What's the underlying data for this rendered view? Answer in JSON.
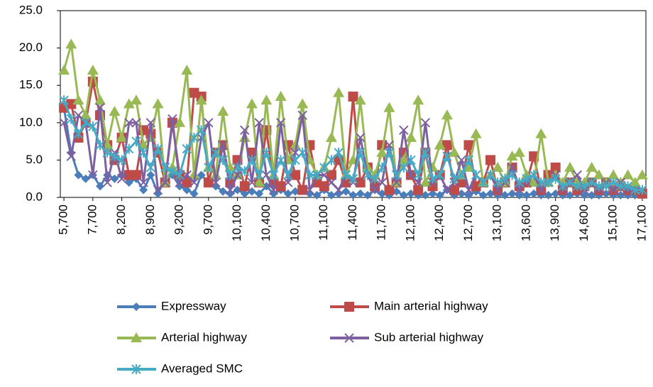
{
  "chart_data": {
    "type": "line",
    "categories": [
      "5,700",
      null,
      null,
      null,
      "7,700",
      null,
      null,
      null,
      "8,200",
      null,
      null,
      null,
      "8,900",
      null,
      null,
      null,
      "9,200",
      null,
      null,
      null,
      "9,700",
      null,
      null,
      null,
      "10,100",
      null,
      null,
      null,
      "10,400",
      null,
      null,
      null,
      "10,700",
      null,
      null,
      null,
      "11,100",
      null,
      null,
      null,
      "11,400",
      null,
      null,
      null,
      "11,700",
      null,
      null,
      null,
      "12,100",
      null,
      null,
      null,
      "12,400",
      null,
      null,
      null,
      "12,700",
      null,
      null,
      null,
      "13,100",
      null,
      null,
      null,
      "13,600",
      null,
      null,
      null,
      "13,900",
      null,
      null,
      null,
      "14,600",
      null,
      null,
      null,
      "15,100",
      null,
      null,
      null,
      "17,100"
    ],
    "ylim": [
      0,
      25
    ],
    "yticks": [
      {
        "value": 0,
        "label": "0.0"
      },
      {
        "value": 5,
        "label": "5.0"
      },
      {
        "value": 10,
        "label": "10.0"
      },
      {
        "value": 15,
        "label": "15.0"
      },
      {
        "value": 20,
        "label": "20.0"
      },
      {
        "value": 25,
        "label": "25.0"
      }
    ],
    "series": [
      {
        "name": "Expressway",
        "color": "#4a7ebb",
        "marker": "diamond",
        "values": [
          12,
          6,
          3,
          2.5,
          3,
          1.5,
          3,
          2.5,
          3,
          2,
          2.5,
          1,
          3,
          0.5,
          2.5,
          3,
          1.5,
          1,
          0.5,
          3,
          2,
          1.5,
          0.8,
          0.5,
          1,
          0.5,
          0.8,
          0.5,
          1.5,
          0.5,
          1,
          0.5,
          0.8,
          1,
          0.5,
          0.3,
          1,
          0.3,
          0.5,
          0.8,
          0.3,
          0.5,
          0.3,
          1,
          0.5,
          0.3,
          0.8,
          0.3,
          0.5,
          0.3,
          0.3,
          0.5,
          0.3,
          1,
          0.3,
          0.5,
          0.3,
          0.8,
          0.3,
          0.5,
          0.3,
          0.3,
          0.5,
          0.3,
          0.3,
          0.5,
          0.3,
          0.3,
          0.5,
          0.3,
          0.3,
          0.5,
          0.3,
          0.3,
          0.3,
          0.5,
          0.3,
          0.3,
          0.3,
          0.3,
          0.3
        ]
      },
      {
        "name": "Main arterial highway",
        "color": "#be4b48",
        "marker": "square",
        "values": [
          12,
          12.5,
          8,
          10,
          15.5,
          11,
          7,
          5,
          8,
          3,
          3,
          9,
          8.5,
          6,
          2,
          10,
          3,
          2,
          14,
          13.5,
          2,
          6,
          7,
          2,
          5,
          1.5,
          6,
          2,
          9,
          2,
          1.5,
          7,
          3,
          1,
          7,
          2,
          1.5,
          3,
          5,
          2,
          13.5,
          2,
          4,
          1.5,
          7,
          1,
          2,
          6,
          3,
          1,
          6,
          1.5,
          3,
          7,
          1,
          2,
          7,
          1.5,
          2,
          5,
          1,
          2,
          4,
          1.5,
          2,
          5.5,
          1,
          3,
          4,
          1,
          2,
          1,
          1.5,
          2,
          1,
          2,
          1,
          1.5,
          1,
          1,
          0.5
        ]
      },
      {
        "name": "Arterial highway",
        "color": "#98b954",
        "marker": "triangle",
        "values": [
          17,
          20.5,
          13,
          11,
          17,
          13,
          7,
          11.5,
          8,
          12.5,
          13,
          7,
          8,
          12.5,
          2,
          4,
          10,
          17,
          3,
          13,
          4,
          3,
          11.5,
          4,
          3,
          8,
          12.5,
          2,
          13,
          3,
          13.5,
          5,
          7,
          12.5,
          5,
          3,
          4,
          8,
          14,
          3,
          5,
          13,
          4,
          3,
          6,
          12,
          2,
          5,
          8,
          13,
          2,
          4,
          7,
          11,
          6,
          3,
          4,
          8.5,
          2,
          3,
          4,
          2,
          5.5,
          6,
          3,
          2,
          8.5,
          2,
          3,
          2,
          4,
          2,
          2,
          4,
          3,
          2,
          3,
          2,
          3,
          2,
          3
        ]
      },
      {
        "name": "Sub arterial highway",
        "color": "#7d60a0",
        "marker": "cross",
        "values": [
          10,
          5.5,
          11,
          10,
          3,
          12,
          2,
          6,
          2.5,
          10,
          10,
          2,
          10,
          1,
          2,
          10.5,
          2,
          3,
          2,
          8,
          10,
          2,
          7,
          1,
          3,
          9,
          2,
          10,
          3,
          1,
          10,
          2,
          6,
          11,
          1,
          3,
          3,
          2,
          1,
          3,
          2,
          8,
          3,
          1,
          2,
          7,
          2,
          9,
          3,
          2,
          10,
          2,
          3,
          1,
          2,
          5,
          1,
          3,
          2,
          3,
          1,
          2,
          4,
          1,
          2,
          3,
          1,
          2,
          3,
          1,
          2,
          3,
          1,
          2,
          1,
          2,
          1,
          2,
          1,
          1,
          1
        ]
      },
      {
        "name": "Averaged SMC",
        "color": "#46aac5",
        "marker": "asterisk",
        "values": [
          13,
          10.5,
          8.5,
          10,
          9.5,
          7,
          6,
          5.5,
          5,
          6.5,
          7.5,
          6,
          4,
          6.5,
          4,
          3.5,
          3,
          6.5,
          8,
          9,
          4,
          6,
          5,
          3,
          4,
          3.5,
          5,
          3,
          6,
          3,
          5,
          3,
          5,
          6,
          3,
          3,
          4,
          5,
          6,
          3,
          2.5,
          6,
          3,
          2.5,
          4,
          6,
          3,
          4,
          5,
          3,
          6,
          2.5,
          3,
          5.5,
          2.5,
          3,
          5,
          3,
          2,
          3,
          2,
          2.5,
          3,
          2,
          2.5,
          3,
          2,
          2,
          2.5,
          1.5,
          2,
          1.5,
          1.5,
          2,
          1.5,
          1.5,
          2,
          1.5,
          1.5,
          1,
          1
        ]
      }
    ]
  }
}
